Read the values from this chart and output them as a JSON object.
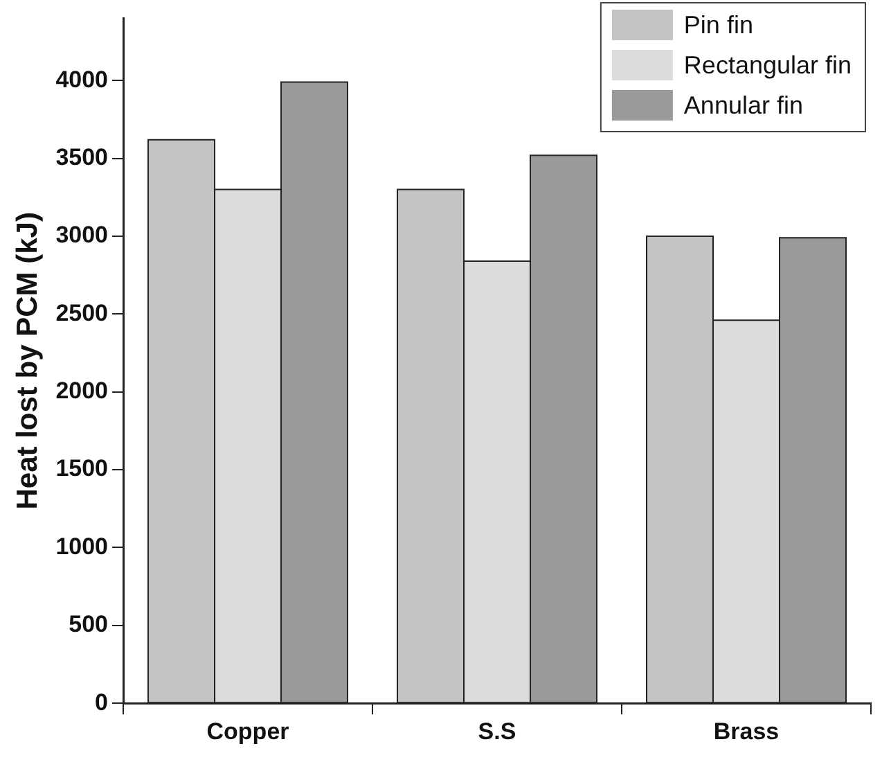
{
  "chart_data": {
    "type": "bar",
    "ylabel": "Heat lost by PCM (kJ)",
    "categories": [
      "Copper",
      "S.S",
      "Brass"
    ],
    "series": [
      {
        "name": "Pin fin",
        "color": "#c4c4c4",
        "values": [
          3620,
          3300,
          3000
        ]
      },
      {
        "name": "Rectangular fin",
        "color": "#dcdcdc",
        "values": [
          3300,
          2840,
          2460
        ]
      },
      {
        "name": "Annular fin",
        "color": "#9a9a9a",
        "values": [
          3990,
          3520,
          2990
        ]
      }
    ],
    "ylim": [
      0,
      4400
    ],
    "yticks": [
      0,
      500,
      1000,
      1500,
      2000,
      2500,
      3000,
      3500,
      4000
    ],
    "grid": false,
    "legend": "top right"
  }
}
